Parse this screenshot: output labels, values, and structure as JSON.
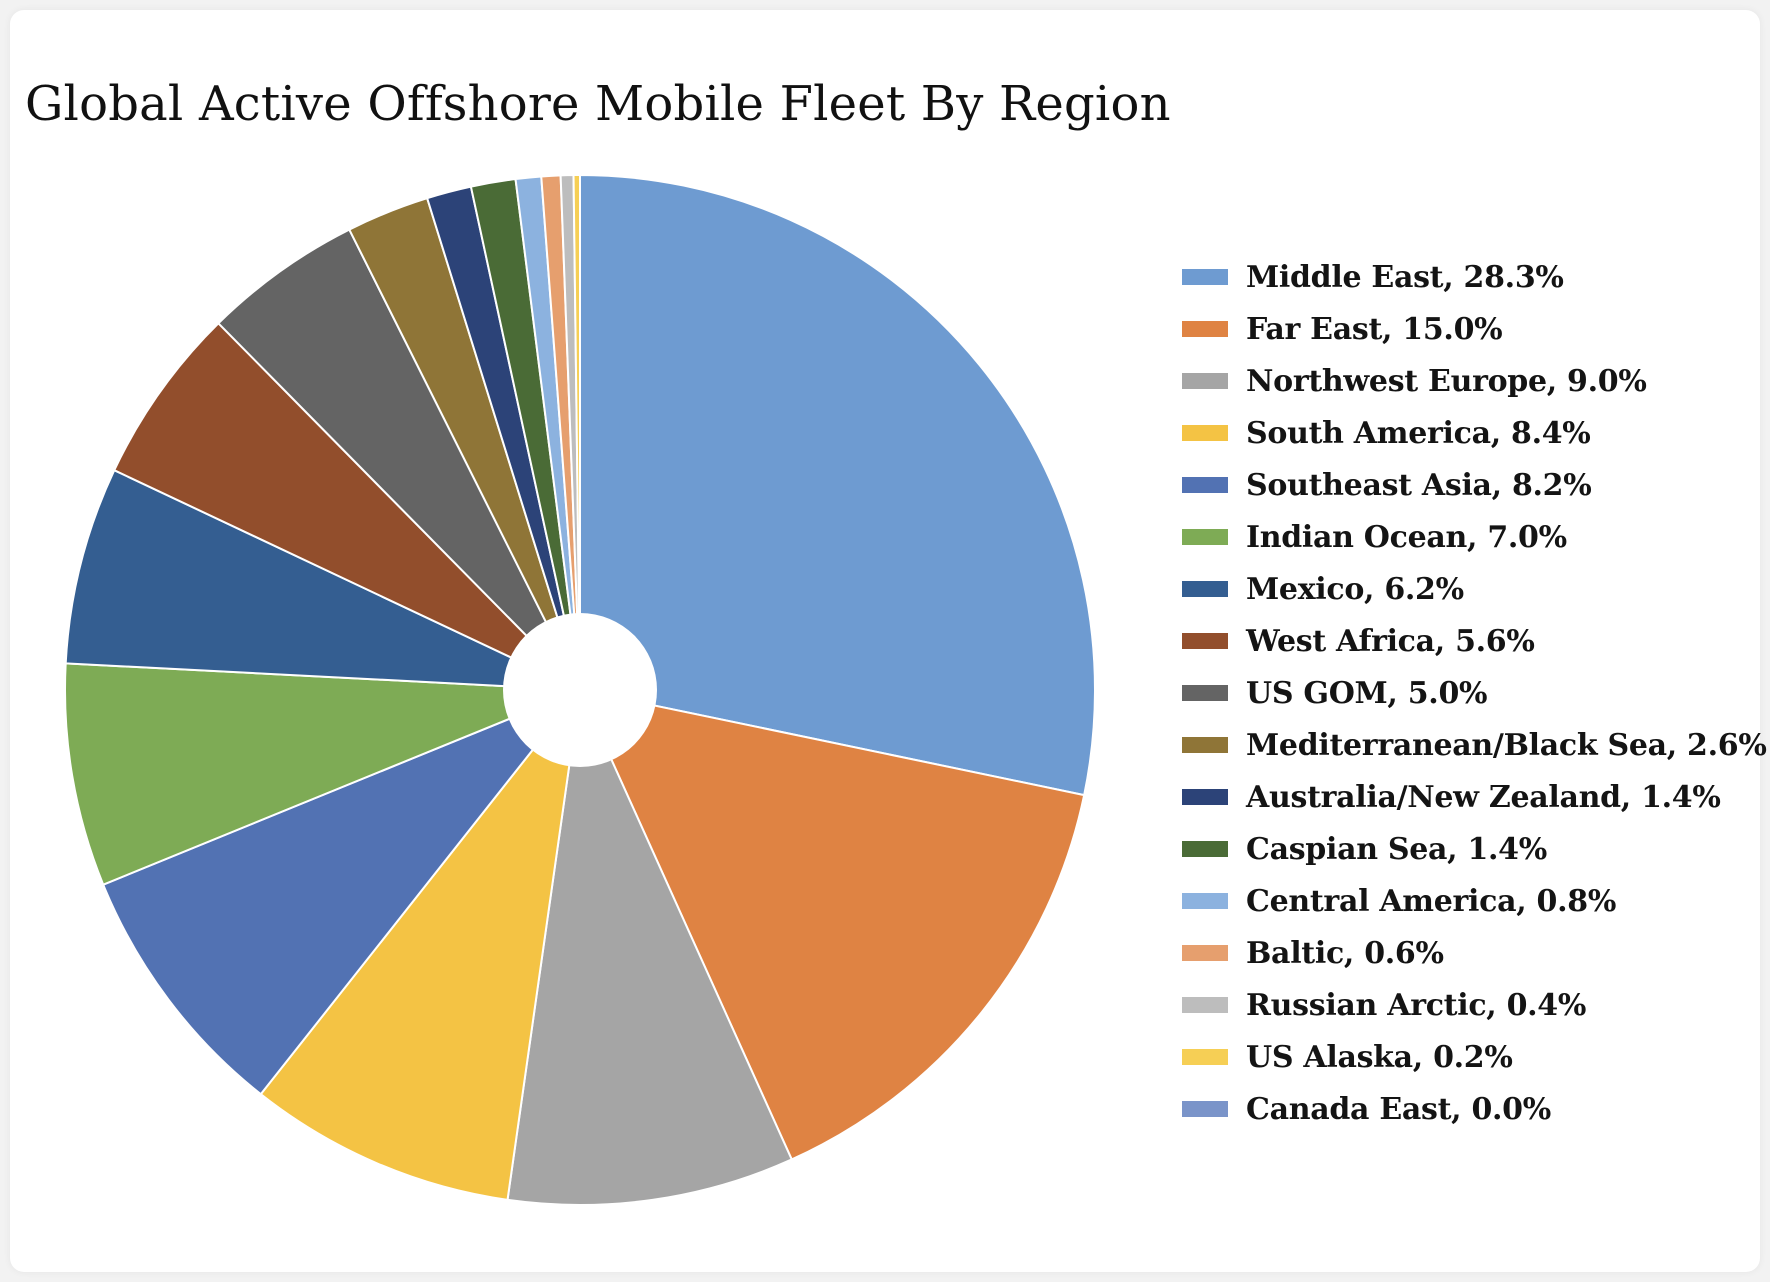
{
  "chart_data": {
    "type": "pie",
    "title": "Global Active Offshore Mobile Fleet By Region",
    "legend_position": "right",
    "slices": [
      {
        "label": "Middle East, 28.3%",
        "value": 28.3,
        "color": "#6e9bd1"
      },
      {
        "label": "Far East, 15.0%",
        "value": 15.0,
        "color": "#df8343"
      },
      {
        "label": "Northwest Europe, 9.0%",
        "value": 9.0,
        "color": "#a5a5a5"
      },
      {
        "label": "South America, 8.4%",
        "value": 8.4,
        "color": "#f4c344"
      },
      {
        "label": "Southeast Asia, 8.2%",
        "value": 8.2,
        "color": "#5272b3"
      },
      {
        "label": "Indian Ocean, 7.0%",
        "value": 7.0,
        "color": "#7eab55"
      },
      {
        "label": "Mexico, 6.2%",
        "value": 6.2,
        "color": "#345e91"
      },
      {
        "label": "West Africa, 5.6%",
        "value": 5.6,
        "color": "#924e2c"
      },
      {
        "label": "US GOM, 5.0%",
        "value": 5.0,
        "color": "#646464"
      },
      {
        "label": "Mediterranean/Black Sea, 2.6%",
        "value": 2.6,
        "color": "#8f7537"
      },
      {
        "label": "Australia/New Zealand, 1.4%",
        "value": 1.4,
        "color": "#2c4378"
      },
      {
        "label": "Caspian Sea, 1.4%",
        "value": 1.4,
        "color": "#4a6b36"
      },
      {
        "label": "Central America, 0.8%",
        "value": 0.8,
        "color": "#8cb2df"
      },
      {
        "label": "Baltic, 0.6%",
        "value": 0.6,
        "color": "#e69f6e"
      },
      {
        "label": "Russian Arctic, 0.4%",
        "value": 0.4,
        "color": "#bdbdbd"
      },
      {
        "label": "US Alaska, 0.2%",
        "value": 0.2,
        "color": "#f6cf55"
      },
      {
        "label": "Canada East, 0.0%",
        "value": 0.0,
        "color": "#7a94c9"
      }
    ]
  }
}
